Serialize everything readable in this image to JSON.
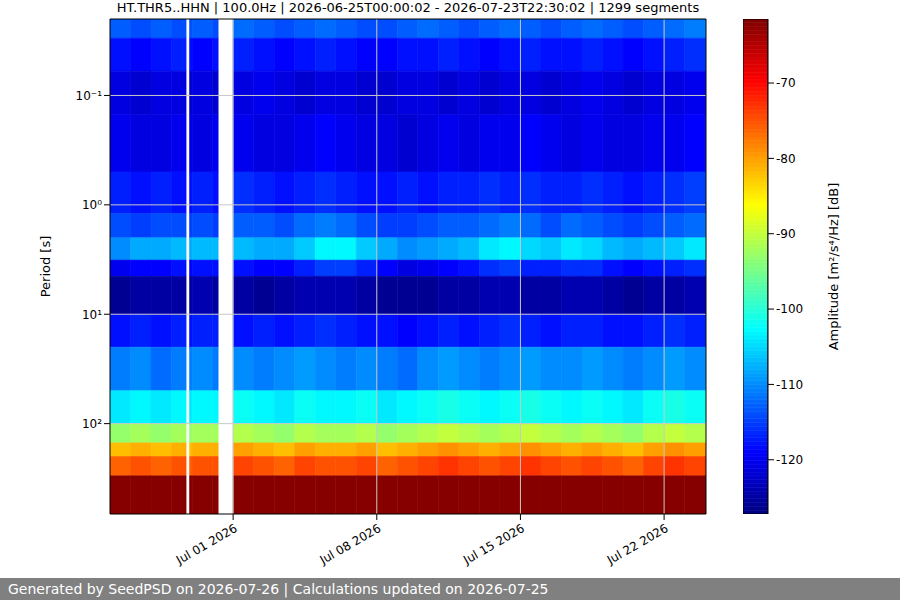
{
  "chart_data": {
    "type": "heatmap",
    "title": "HT.THR5..HHN | 100.0Hz | 2026-06-25T00:00:02 - 2026-07-23T22:30:02 | 1299 segments",
    "y_label": "Period [s]",
    "footer": "Generated by SeedPSD on 2026-07-26 | Calculations updated on 2026-07-25",
    "log": "y",
    "grid": true,
    "xlim": [
      "2026-06-25T00:00",
      "2026-07-24T01:00"
    ],
    "xticks": [
      {
        "value": "2026-07-01T00:00",
        "label": "Jul 01 2026"
      },
      {
        "value": "2026-07-08T00:00",
        "label": "Jul 08 2026"
      },
      {
        "value": "2026-07-15T00:00",
        "label": "Jul 15 2026"
      },
      {
        "value": "2026-07-22T00:00",
        "label": "Jul 22 2026"
      }
    ],
    "ylim": [
      670,
      0.02
    ],
    "yticks": [
      {
        "value": 0.1,
        "label": "10⁻¹"
      },
      {
        "value": 1,
        "label": "10⁰"
      },
      {
        "value": 10,
        "label": "10¹"
      },
      {
        "value": 100,
        "label": "10²"
      }
    ],
    "x_bins": [
      "2026-06-25T00:00",
      "2026-06-26T00:00",
      "2026-06-27T00:00",
      "2026-06-28T00:00",
      "2026-06-28T17:00",
      "2026-06-28T21:00",
      "2026-06-29T00:00",
      "2026-06-30T00:00",
      "2026-06-30T06:30",
      "2026-07-01T00:00",
      "2026-07-02T00:00",
      "2026-07-03T00:00",
      "2026-07-04T00:00",
      "2026-07-05T00:00",
      "2026-07-06T00:00",
      "2026-07-07T00:00",
      "2026-07-08T00:00",
      "2026-07-09T00:00",
      "2026-07-10T00:00",
      "2026-07-11T00:00",
      "2026-07-12T00:00",
      "2026-07-13T00:00",
      "2026-07-14T00:00",
      "2026-07-15T00:00",
      "2026-07-16T00:00",
      "2026-07-17T00:00",
      "2026-07-18T00:00",
      "2026-07-19T00:00",
      "2026-07-20T00:00",
      "2026-07-21T00:00",
      "2026-07-22T00:00",
      "2026-07-23T00:00",
      "2026-07-24T00:00",
      "2026-07-24T01:00"
    ],
    "y_bins": [
      0.02,
      0.03,
      0.06,
      0.15,
      0.5,
      1.2,
      2,
      3.2,
      4.5,
      10,
      20,
      50,
      100,
      150,
      200,
      300,
      670
    ],
    "cells": [
      [
        -113,
        -114,
        -113,
        -114,
        null,
        -114,
        -113,
        -114,
        null,
        -112,
        -113,
        -114,
        -113,
        -112,
        -113,
        -114,
        -114,
        -113,
        -112,
        -113,
        -114,
        -113,
        -112,
        -113,
        -114,
        -113,
        -112,
        -113,
        -114,
        -113,
        -112,
        -111,
        -110
      ],
      [
        -118,
        -119,
        -118,
        -117,
        null,
        -118,
        -119,
        -118,
        null,
        -117,
        -118,
        -119,
        -118,
        -117,
        -118,
        -119,
        -119,
        -118,
        -118,
        -117,
        -118,
        -119,
        -118,
        -117,
        -118,
        -118,
        -117,
        -118,
        -119,
        -118,
        -117,
        -116,
        -115
      ],
      [
        -121,
        -122,
        -121,
        -121,
        null,
        -122,
        -121,
        -122,
        null,
        -121,
        -120,
        -121,
        -122,
        -121,
        -121,
        -122,
        -122,
        -121,
        -121,
        -122,
        -121,
        -122,
        -121,
        -121,
        -122,
        -121,
        -120,
        -121,
        -122,
        -121,
        -121,
        -120,
        -118
      ],
      [
        -120,
        -121,
        -121,
        -120,
        null,
        -121,
        -121,
        -120,
        null,
        -120,
        -121,
        -121,
        -120,
        -119,
        -120,
        -121,
        -121,
        -122,
        -121,
        -120,
        -121,
        -120,
        -120,
        -119,
        -120,
        -121,
        -120,
        -121,
        -121,
        -120,
        -120,
        -119,
        -117
      ],
      [
        -117,
        -118,
        -117,
        -118,
        null,
        -118,
        -117,
        -118,
        null,
        -116,
        -117,
        -118,
        -117,
        -116,
        -117,
        -118,
        -118,
        -117,
        -118,
        -117,
        -117,
        -116,
        -117,
        -116,
        -117,
        -117,
        -116,
        -117,
        -118,
        -117,
        -116,
        -115,
        -114
      ],
      [
        -114,
        -115,
        -114,
        -114,
        null,
        -115,
        -114,
        -115,
        null,
        -113,
        -113,
        -114,
        -112,
        -111,
        -112,
        -114,
        -115,
        -115,
        -114,
        -113,
        -113,
        -112,
        -111,
        -112,
        -114,
        -112,
        -113,
        -114,
        -115,
        -114,
        -113,
        -112,
        -110
      ],
      [
        -110,
        -108,
        -108,
        -107,
        null,
        -108,
        -107,
        -107,
        null,
        -107,
        -108,
        -108,
        -106,
        -103,
        -103,
        -106,
        -108,
        -110,
        -109,
        -108,
        -107,
        -104,
        -103,
        -105,
        -106,
        -104,
        -105,
        -107,
        -108,
        -107,
        -106,
        -104,
        -102
      ],
      [
        -120,
        -119,
        -119,
        -118,
        null,
        -119,
        -118,
        -118,
        null,
        -118,
        -119,
        -119,
        -117,
        -115,
        -115,
        -117,
        -119,
        -121,
        -120,
        -119,
        -118,
        -116,
        -115,
        -117,
        -117,
        -116,
        -116,
        -118,
        -119,
        -118,
        -117,
        -116,
        -114
      ],
      [
        -126,
        -125,
        -125,
        -125,
        null,
        -125,
        -124,
        -125,
        null,
        -125,
        -126,
        -125,
        -124,
        -124,
        -124,
        -125,
        -126,
        -126,
        -126,
        -125,
        -125,
        -124,
        -124,
        -125,
        -125,
        -124,
        -124,
        -125,
        -126,
        -125,
        -125,
        -124,
        -123
      ],
      [
        -118,
        -117,
        -118,
        -117,
        null,
        -118,
        -117,
        -117,
        null,
        -118,
        -117,
        -118,
        -117,
        -116,
        -117,
        -118,
        -118,
        -119,
        -118,
        -117,
        -118,
        -117,
        -116,
        -117,
        -118,
        -117,
        -117,
        -118,
        -118,
        -117,
        -116,
        -117,
        -116
      ],
      [
        -111,
        -110,
        -112,
        -111,
        null,
        -111,
        -110,
        -111,
        null,
        -110,
        -111,
        -110,
        -109,
        -110,
        -111,
        -110,
        -111,
        -112,
        -110,
        -109,
        -110,
        -111,
        -110,
        -109,
        -110,
        -110,
        -109,
        -110,
        -111,
        -110,
        -109,
        -110,
        -109
      ],
      [
        -104,
        -103,
        -104,
        -103,
        null,
        -104,
        -103,
        -103,
        null,
        -102,
        -103,
        -104,
        -102,
        -103,
        -103,
        -102,
        -104,
        -103,
        -102,
        -101,
        -102,
        -103,
        -102,
        -101,
        -102,
        -103,
        -102,
        -103,
        -104,
        -102,
        -101,
        -102,
        -101
      ],
      [
        -93,
        -92,
        -93,
        -92,
        null,
        -93,
        -92,
        -92,
        null,
        -91,
        -92,
        -93,
        -91,
        -92,
        -92,
        -91,
        -93,
        -92,
        -91,
        -90,
        -91,
        -92,
        -91,
        -90,
        -91,
        -92,
        -91,
        -92,
        -93,
        -91,
        -90,
        -91,
        -90
      ],
      [
        -82,
        -81,
        -82,
        -81,
        null,
        -82,
        -81,
        -81,
        null,
        -80,
        -81,
        -82,
        -80,
        -81,
        -81,
        -80,
        -82,
        -81,
        -80,
        -79,
        -80,
        -81,
        -80,
        -79,
        -80,
        -81,
        -80,
        -81,
        -82,
        -80,
        -79,
        -80,
        -79
      ],
      [
        -76,
        -75,
        -76,
        -75,
        null,
        -76,
        -75,
        -75,
        null,
        -74,
        -75,
        -76,
        -74,
        -75,
        -75,
        -74,
        -76,
        -75,
        -74,
        -73,
        -74,
        -75,
        -74,
        -73,
        -74,
        -75,
        -74,
        -75,
        -76,
        -74,
        -73,
        -74,
        -73
      ],
      [
        -62,
        -62,
        -62,
        -62,
        null,
        -62,
        -62,
        -62,
        null,
        -62,
        -62,
        -62,
        -62,
        -62,
        -62,
        -62,
        -62,
        -62,
        -62,
        -62,
        -62,
        -62,
        -62,
        -62,
        -62,
        -62,
        -62,
        -62,
        -62,
        -62,
        -62,
        -62,
        -62
      ]
    ],
    "colorbar": {
      "label": "Amplitude [m²/s⁴/Hz] [dB]",
      "range": [
        -127.2,
        -61.5
      ],
      "ticks": [
        -70,
        -80,
        -90,
        -100,
        -110,
        -120
      ]
    }
  }
}
